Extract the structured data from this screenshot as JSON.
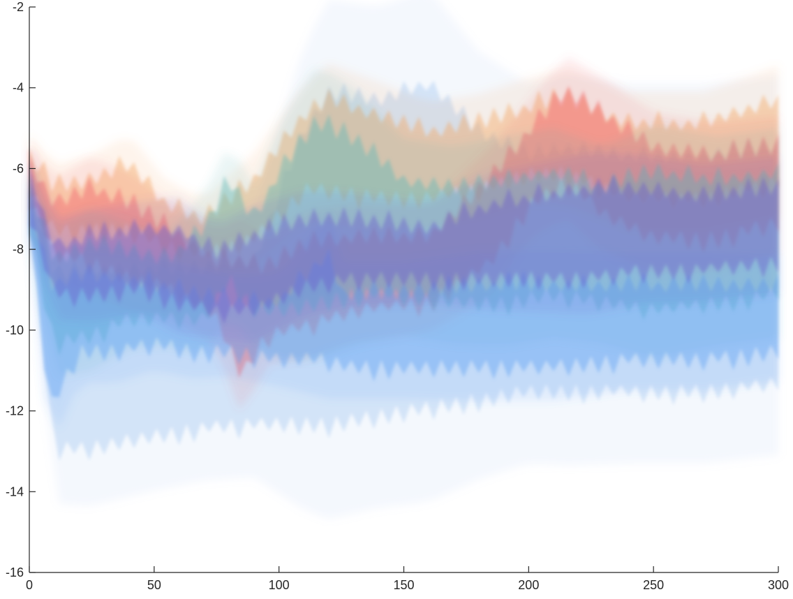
{
  "chart_data": {
    "type": "line",
    "title": "",
    "xlabel": "",
    "ylabel": "",
    "xlim": [
      0,
      300
    ],
    "ylim": [
      -16,
      -2
    ],
    "x_ticks": [
      0,
      50,
      100,
      150,
      200,
      250,
      300
    ],
    "y_ticks": [
      -16,
      -14,
      -12,
      -10,
      -8,
      -6,
      -4,
      -2
    ],
    "x_tick_labels": [
      "0",
      "50",
      "100",
      "150",
      "200",
      "250",
      "300"
    ],
    "y_tick_labels": [
      "-16",
      "-14",
      "-12",
      "-10",
      "-8",
      "-6",
      "-4",
      "-2"
    ],
    "grid": false,
    "legend": "none",
    "bands": [
      {
        "color": "#a8c8f0",
        "x": [
          0,
          10,
          25,
          50,
          70,
          90,
          110,
          120,
          140,
          160,
          180,
          200,
          215,
          240,
          270,
          300
        ],
        "upper": [
          -6.8,
          -8.8,
          -8.6,
          -8.6,
          -8.6,
          -8.4,
          -5.2,
          -4.3,
          -4.4,
          -4.0,
          -5.2,
          -5.8,
          -5.6,
          -5.8,
          -5.8,
          -5.6
        ],
        "lower": [
          -7.2,
          -12.8,
          -12.8,
          -12.5,
          -12.3,
          -12.2,
          -12.2,
          -12.2,
          -12.0,
          -11.8,
          -11.6,
          -11.4,
          -11.4,
          -11.4,
          -11.4,
          -11.2
        ]
      },
      {
        "color": "#f4a460",
        "x": [
          0,
          10,
          25,
          40,
          55,
          70,
          90,
          110,
          120,
          140,
          160,
          180,
          200,
          215,
          240,
          270,
          300
        ],
        "upper": [
          -5.8,
          -6.6,
          -6.4,
          -6.0,
          -7.0,
          -7.4,
          -6.4,
          -4.8,
          -4.4,
          -4.8,
          -5.2,
          -5.0,
          -4.6,
          -4.4,
          -5.0,
          -5.0,
          -4.4
        ],
        "lower": [
          -6.4,
          -7.4,
          -7.4,
          -7.4,
          -7.8,
          -8.0,
          -7.6,
          -6.4,
          -6.4,
          -6.6,
          -6.6,
          -6.4,
          -6.0,
          -6.0,
          -6.6,
          -6.6,
          -6.2
        ]
      },
      {
        "color": "#f0606a",
        "x": [
          0,
          10,
          25,
          40,
          55,
          75,
          85,
          95,
          110,
          130,
          160,
          185,
          200,
          215,
          230,
          250,
          275,
          300
        ],
        "upper": [
          -6.0,
          -7.0,
          -6.6,
          -7.0,
          -7.6,
          -8.4,
          -8.4,
          -8.6,
          -8.0,
          -7.8,
          -7.8,
          -6.4,
          -5.2,
          -4.2,
          -4.8,
          -5.6,
          -5.8,
          -5.6
        ],
        "lower": [
          -6.6,
          -8.0,
          -8.2,
          -8.6,
          -8.8,
          -9.6,
          -11.0,
          -10.0,
          -9.8,
          -9.4,
          -9.2,
          -8.2,
          -6.8,
          -6.2,
          -7.0,
          -7.6,
          -7.6,
          -7.2
        ]
      },
      {
        "color": "#5ab8b8",
        "x": [
          0,
          10,
          25,
          40,
          55,
          70,
          80,
          90,
          100,
          115,
          130,
          150,
          170,
          190,
          210,
          230,
          250,
          275,
          300
        ],
        "upper": [
          -6.6,
          -8.4,
          -8.0,
          -8.2,
          -8.4,
          -7.6,
          -6.4,
          -7.4,
          -6.2,
          -5.0,
          -5.4,
          -6.4,
          -6.6,
          -6.4,
          -6.2,
          -6.6,
          -6.2,
          -6.4,
          -6.2
        ],
        "lower": [
          -7.2,
          -10.2,
          -10.0,
          -9.6,
          -9.6,
          -9.6,
          -8.6,
          -9.4,
          -9.4,
          -9.2,
          -9.0,
          -9.0,
          -9.2,
          -9.2,
          -9.0,
          -9.2,
          -9.4,
          -9.2,
          -9.0
        ]
      },
      {
        "color": "#5aa0f4",
        "x": [
          0,
          8,
          20,
          35,
          50,
          65,
          80,
          100,
          120,
          125,
          150,
          180,
          210,
          240,
          270,
          300
        ],
        "upper": [
          -6.8,
          -9.0,
          -8.8,
          -8.8,
          -9.0,
          -9.2,
          -9.4,
          -9.4,
          -8.2,
          -9.2,
          -9.2,
          -9.0,
          -9.0,
          -9.0,
          -9.0,
          -9.0
        ],
        "lower": [
          -7.2,
          -11.8,
          -10.4,
          -10.4,
          -10.2,
          -10.4,
          -10.4,
          -10.6,
          -10.6,
          -10.8,
          -10.8,
          -10.8,
          -10.8,
          -10.6,
          -10.6,
          -10.4
        ]
      },
      {
        "color": "#6a5acd",
        "x": [
          0,
          10,
          25,
          45,
          60,
          75,
          90,
          110,
          130,
          160,
          185,
          205,
          225,
          245,
          270,
          300
        ],
        "upper": [
          -6.2,
          -8.0,
          -7.8,
          -7.6,
          -7.6,
          -8.2,
          -7.8,
          -7.4,
          -7.4,
          -7.6,
          -7.0,
          -6.8,
          -6.6,
          -6.6,
          -6.8,
          -6.6
        ],
        "lower": [
          -7.0,
          -9.0,
          -9.0,
          -8.8,
          -9.2,
          -9.4,
          -9.4,
          -8.8,
          -8.6,
          -8.6,
          -8.6,
          -8.6,
          -8.6,
          -8.4,
          -8.4,
          -8.2
        ]
      }
    ]
  }
}
